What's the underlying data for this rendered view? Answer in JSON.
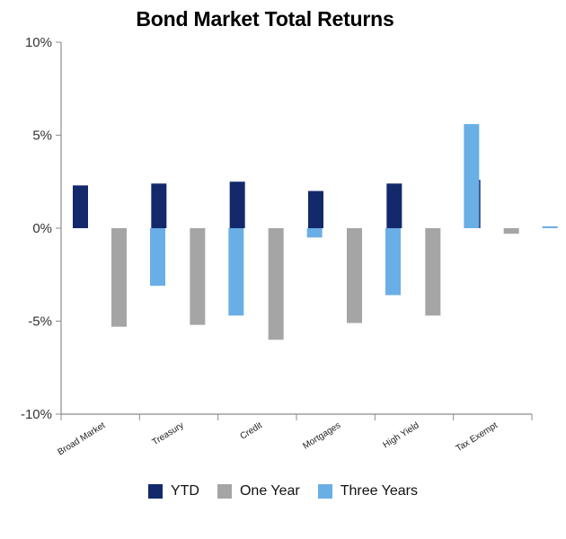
{
  "chart_data": {
    "type": "bar",
    "title": "Bond Market Total Returns",
    "xlabel": "",
    "ylabel": "",
    "categories": [
      "Broad Market",
      "Treasury",
      "Credit",
      "Mortgages",
      "High Yield",
      "Tax Exempt"
    ],
    "series": [
      {
        "name": "YTD",
        "color": "#13296b",
        "values": [
          2.3,
          2.4,
          2.5,
          2.0,
          2.4,
          2.6
        ]
      },
      {
        "name": "One Year",
        "color": "#a5a5a5",
        "values": [
          -5.3,
          -5.2,
          -6.0,
          -5.1,
          -4.7,
          -0.3
        ]
      },
      {
        "name": "Three Years",
        "color": "#6aaee6",
        "values": [
          -3.1,
          -4.7,
          -0.5,
          -3.6,
          5.6,
          0.1
        ]
      }
    ],
    "ylim": [
      -10,
      10
    ],
    "yticks": [
      10,
      5,
      0,
      -5,
      -10
    ],
    "ytick_labels": [
      "10%",
      "5%",
      "0%",
      "-5%",
      "-10%"
    ],
    "grid": false,
    "legend_position": "bottom"
  }
}
